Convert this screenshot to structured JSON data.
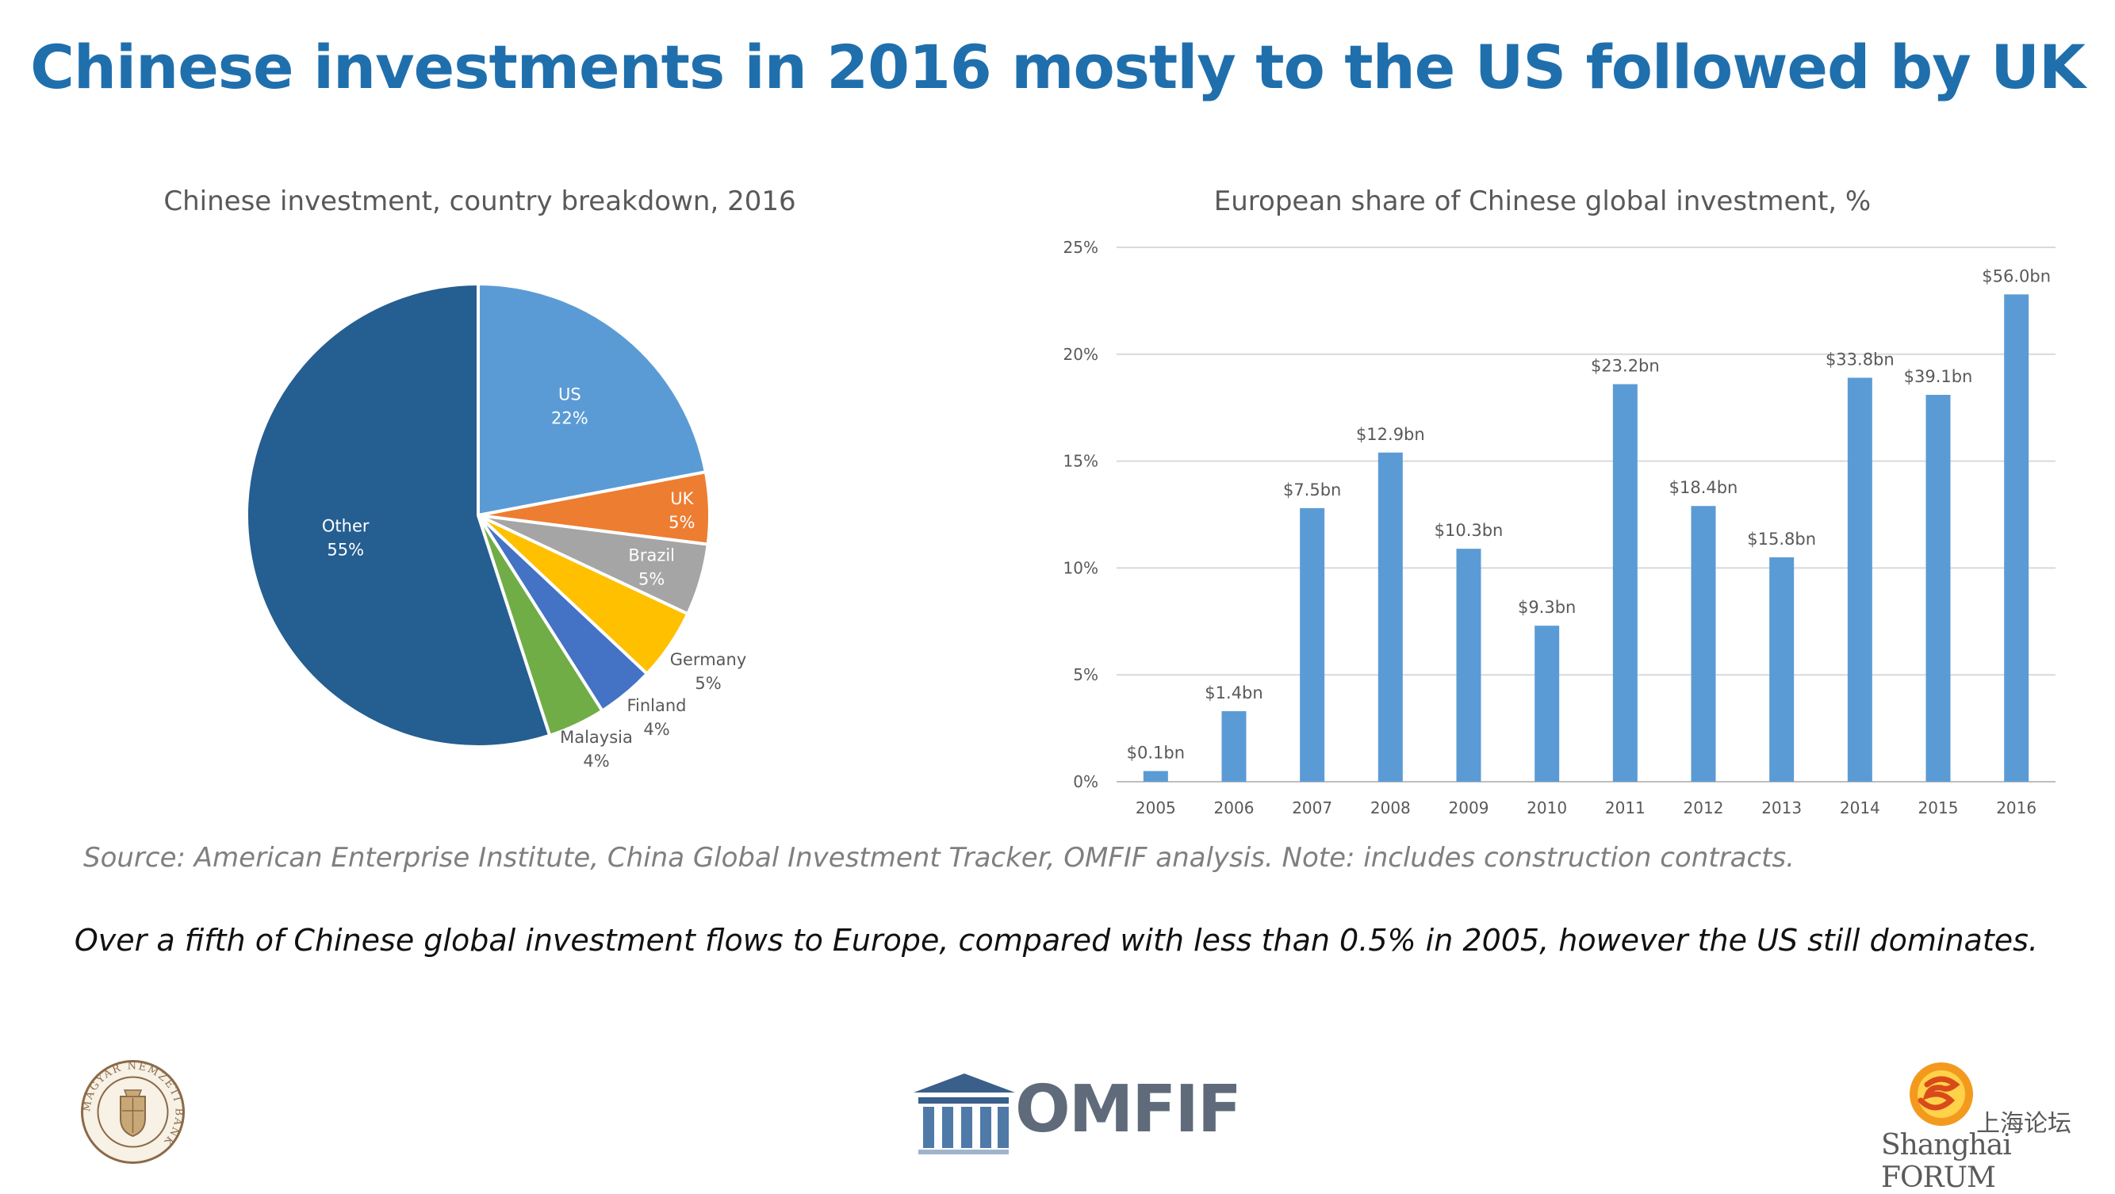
{
  "slide": {
    "title": "Chinese investments in 2016 mostly to the US followed by UK",
    "source_note": "Source: American Enterprise Institute, China Global Investment Tracker, OMFIF analysis. Note: includes construction contracts.",
    "summary": "Over a fifth of Chinese global investment flows to Europe, compared with less than 0.5% in 2005, however the US still dominates."
  },
  "logos": {
    "mnb_seal_text": "MAGYAR NEMZETI BANK",
    "omfif": "OMFIF",
    "shanghai_cn": "上海论坛",
    "shanghai_en": "Shanghai FORUM"
  },
  "chart_data": [
    {
      "type": "pie",
      "title": "Chinese investment, country breakdown, 2016",
      "slices": [
        {
          "label": "US",
          "value": 22,
          "display": "22%",
          "color": "#5b9bd5"
        },
        {
          "label": "UK",
          "value": 5,
          "display": "5%",
          "color": "#ed7d31"
        },
        {
          "label": "Brazil",
          "value": 5,
          "display": "5%",
          "color": "#a5a5a5"
        },
        {
          "label": "Germany",
          "value": 5,
          "display": "5%",
          "color": "#ffc000"
        },
        {
          "label": "Finland",
          "value": 4,
          "display": "4%",
          "color": "#4472c4"
        },
        {
          "label": "Malaysia",
          "value": 4,
          "display": "4%",
          "color": "#70ad47"
        },
        {
          "label": "Other",
          "value": 55,
          "display": "55%",
          "color": "#255e91"
        }
      ]
    },
    {
      "type": "bar",
      "title": "European share of Chinese global investment, %",
      "categories": [
        "2005",
        "2006",
        "2007",
        "2008",
        "2009",
        "2010",
        "2011",
        "2012",
        "2013",
        "2014",
        "2015",
        "2016"
      ],
      "values": [
        0.5,
        3.3,
        12.8,
        15.4,
        10.9,
        7.3,
        18.6,
        12.9,
        10.5,
        18.9,
        18.1,
        22.8
      ],
      "data_labels": [
        "$0.1bn",
        "$1.4bn",
        "$7.5bn",
        "$12.9bn",
        "$10.3bn",
        "$9.3bn",
        "$23.2bn",
        "$18.4bn",
        "$15.8bn",
        "$33.8bn",
        "$39.1bn",
        "$56.0bn"
      ],
      "yticks": [
        0,
        5,
        10,
        15,
        20,
        25
      ],
      "ytick_labels": [
        "0%",
        "5%",
        "10%",
        "15%",
        "20%",
        "25%"
      ],
      "ylim": [
        0,
        25
      ],
      "grid": true,
      "color": "#5b9bd5"
    }
  ]
}
